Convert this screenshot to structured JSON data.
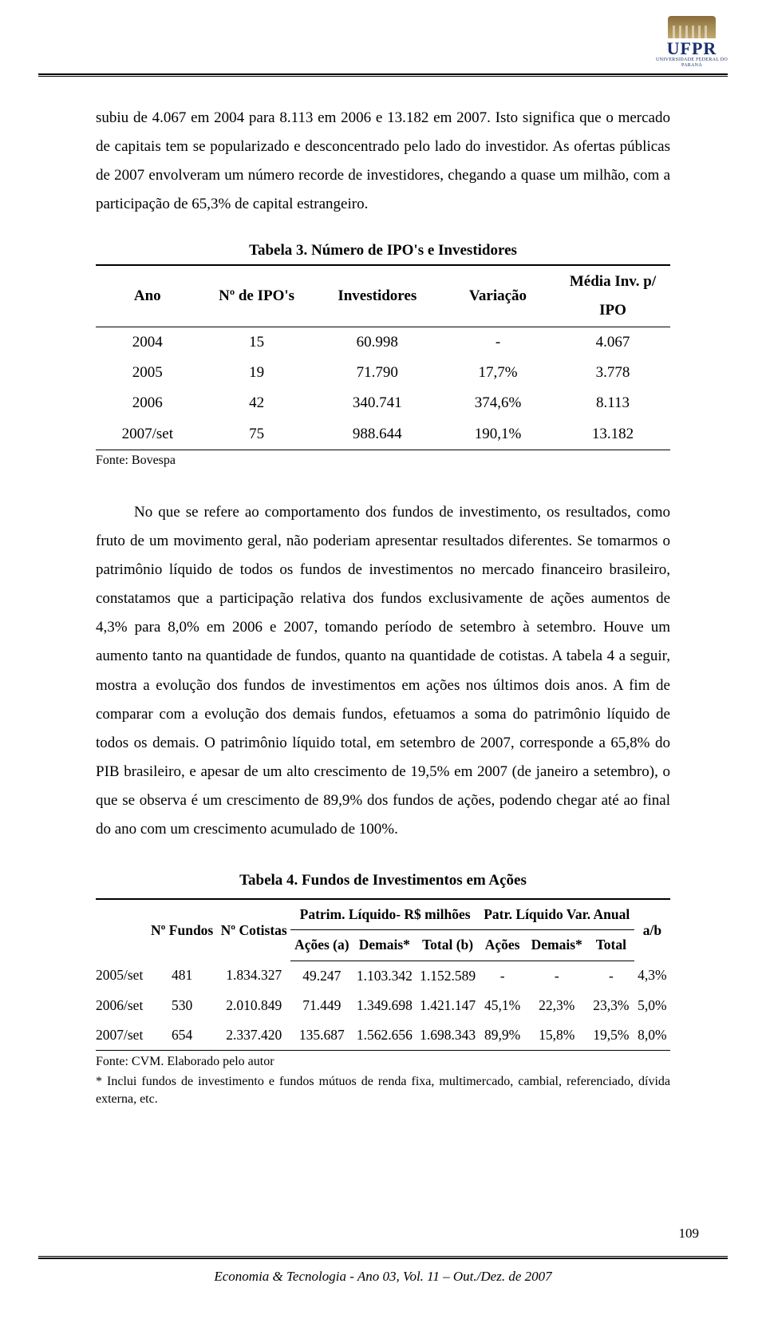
{
  "logo": {
    "name": "UFPR",
    "subtitle": "UNIVERSIDADE FEDERAL DO PARANÁ"
  },
  "paragraph1_parts": {
    "p1": "subiu de 4.067 em 2004 para 8.113 em 2006 e 13.182 em 2007. Isto significa que o mercado de capitais tem se popularizado e desconcentrado pelo lado do investidor. As ofertas públicas de 2007 envolveram um número recorde de investidores, chegando a quase um milhão, com a participação de 65,3% de capital estrangeiro."
  },
  "table3": {
    "title": "Tabela 3. Número de IPO's e Investidores",
    "headers": {
      "ano": "Ano",
      "nipo": "Nº de IPO's",
      "inv": "Investidores",
      "var": "Variação",
      "med": "Média Inv. p/ IPO"
    },
    "rows": [
      {
        "ano": "2004",
        "nipo": "15",
        "inv": "60.998",
        "var": "-",
        "med": "4.067"
      },
      {
        "ano": "2005",
        "nipo": "19",
        "inv": "71.790",
        "var": "17,7%",
        "med": "3.778"
      },
      {
        "ano": "2006",
        "nipo": "42",
        "inv": "340.741",
        "var": "374,6%",
        "med": "8.113"
      },
      {
        "ano": "2007/set",
        "nipo": "75",
        "inv": "988.644",
        "var": "190,1%",
        "med": "13.182"
      }
    ],
    "source": "Fonte: Bovespa"
  },
  "paragraph2": "No que se refere ao comportamento dos fundos de investimento, os resultados, como fruto de um movimento geral, não poderiam apresentar resultados diferentes. Se tomarmos o patrimônio líquido de todos os fundos de investimentos no mercado financeiro brasileiro, constatamos que a participação relativa dos fundos exclusivamente de ações aumentos de 4,3% para 8,0% em 2006 e 2007, tomando período de setembro à setembro. Houve um aumento tanto na quantidade de fundos, quanto na quantidade de cotistas. A tabela 4 a seguir, mostra a evolução dos fundos de investimentos em ações nos últimos dois anos. A fim de comparar com a evolução dos demais fundos, efetuamos a soma do patrimônio líquido de todos os demais. O patrimônio líquido total, em setembro de 2007, corresponde a 65,8% do PIB brasileiro, e apesar de um alto crescimento de 19,5% em 2007 (de janeiro a setembro), o que se observa é um crescimento de 89,9% dos fundos de ações, podendo chegar até ao final do ano com um crescimento acumulado de 100%.",
  "table4": {
    "title": "Tabela 4. Fundos de Investimentos em Ações",
    "headers": {
      "empty": "",
      "nfundos": "Nº Fundos",
      "ncotistas": "Nº Cotistas",
      "patrim_group": "Patrim. Líquido- R$ milhões",
      "patr_group": "Patr. Líquido Var. Anual",
      "ab": "a/b",
      "acoes_a": "Ações (a)",
      "demais": "Demais*",
      "total_b": "Total (b)",
      "acoes": "Ações",
      "demais2": "Demais*",
      "total": "Total"
    },
    "rows": [
      {
        "periodo": "2005/set",
        "nfundos": "481",
        "ncot": "1.834.327",
        "pa": "49.247",
        "pd": "1.103.342",
        "pt": "1.152.589",
        "va": "-",
        "vd": "-",
        "vt": "-",
        "ab": "4,3%"
      },
      {
        "periodo": "2006/set",
        "nfundos": "530",
        "ncot": "2.010.849",
        "pa": "71.449",
        "pd": "1.349.698",
        "pt": "1.421.147",
        "va": "45,1%",
        "vd": "22,3%",
        "vt": "23,3%",
        "ab": "5,0%"
      },
      {
        "periodo": "2007/set",
        "nfundos": "654",
        "ncot": "2.337.420",
        "pa": "135.687",
        "pd": "1.562.656",
        "pt": "1.698.343",
        "va": "89,9%",
        "vd": "15,8%",
        "vt": "19,5%",
        "ab": "8,0%"
      }
    ],
    "source": "Fonte: CVM. Elaborado pelo autor",
    "note": "* Inclui fundos de investimento e fundos mútuos de renda fixa, multimercado, cambial, referenciado, dívida externa, etc."
  },
  "footer": {
    "line": "Economia & Tecnologia - Ano 03, Vol. 11 – Out./Dez. de 2007",
    "page": "109"
  }
}
